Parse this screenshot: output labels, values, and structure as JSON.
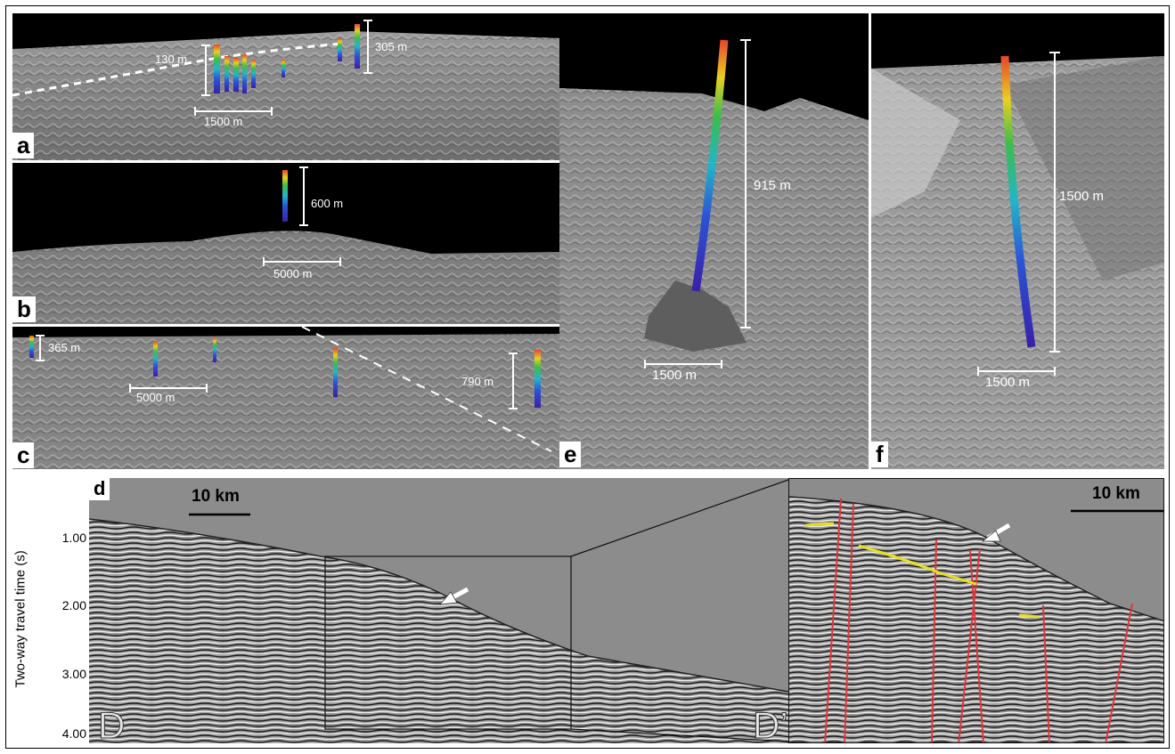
{
  "panels": {
    "a": {
      "label": "a",
      "scale_vertical_1": "130 m",
      "scale_vertical_2": "305 m",
      "scale_horizontal": "1500 m"
    },
    "b": {
      "label": "b",
      "scale_vertical": "600 m",
      "scale_horizontal": "5000 m"
    },
    "c": {
      "label": "c",
      "scale_vertical_1": "365 m",
      "scale_vertical_2": "790 m",
      "scale_horizontal": "5000 m"
    },
    "e": {
      "label": "e",
      "scale_vertical": "915 m",
      "scale_horizontal": "1500 m"
    },
    "f": {
      "label": "f",
      "scale_vertical": "1500 m",
      "scale_horizontal": "1500 m"
    },
    "d": {
      "label": "d",
      "scale_bar": "10 km",
      "zoom_scale_bar": "10 km",
      "y_axis_label": "Two-way travel time (s)",
      "y_ticks": [
        "1.00",
        "2.00",
        "3.00",
        "4.00"
      ],
      "profile_start": "D",
      "profile_end": "D’"
    }
  },
  "colors": {
    "seafloor": "#8a8a8a",
    "sky": "#000000",
    "seismic_bg": "#8c8c8c",
    "fault_lines": "#e0353a",
    "horizon_lines": "#e7e01f",
    "plume_gradient": [
      "#7a1fa2",
      "#2d3fd6",
      "#22b5c9",
      "#3dbd4a",
      "#e8d11f",
      "#e8452a"
    ]
  }
}
